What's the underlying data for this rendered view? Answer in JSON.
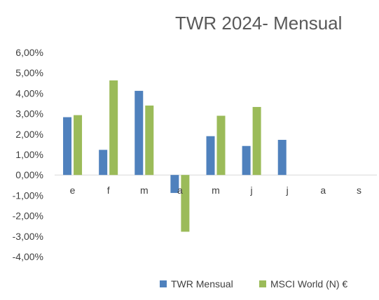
{
  "chart_data": {
    "type": "bar",
    "title": "TWR 2024- Mensual",
    "categories": [
      "e",
      "f",
      "m",
      "a",
      "m",
      "j",
      "j",
      "a",
      "s"
    ],
    "series": [
      {
        "name": "TWR Mensual",
        "color": "#4F81BD",
        "values": [
          2.83,
          1.23,
          4.12,
          -0.88,
          1.9,
          1.42,
          1.72,
          null,
          null
        ]
      },
      {
        "name": "MSCI World (N) €",
        "color": "#9BBB59",
        "values": [
          2.93,
          4.63,
          3.4,
          -2.78,
          2.9,
          3.33,
          null,
          null,
          null
        ]
      }
    ],
    "ylim": [
      -4,
      6
    ],
    "ytick_step": 1,
    "ytick_labels": [
      "6,00%",
      "5,00%",
      "4,00%",
      "3,00%",
      "2,00%",
      "1,00%",
      "0,00%",
      "-1,00%",
      "-2,00%",
      "-3,00%",
      "-4,00%"
    ],
    "xlabel": "",
    "ylabel": "",
    "grid": false,
    "legend_position": "bottom-right"
  }
}
